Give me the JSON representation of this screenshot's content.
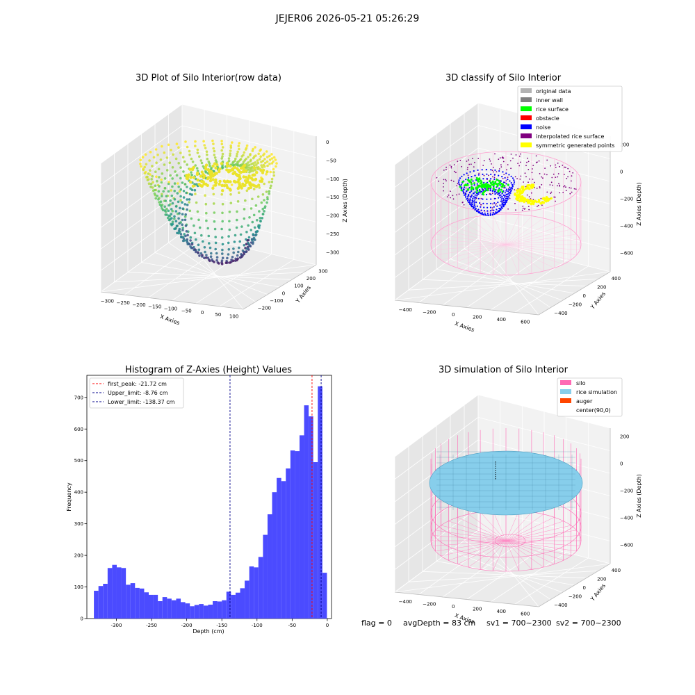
{
  "figure": {
    "suptitle": "JEJER06 2026-05-21 05:26:29",
    "footer": {
      "flag": "flag = 0",
      "avg_depth": "avgDepth = 83 cm",
      "sv1": "sv1 = 700~2300",
      "sv2": "sv2 = 700~2300"
    }
  },
  "chart_data": [
    {
      "type": "scatter",
      "title": "3D Plot of Silo Interior(row data)",
      "xlabel": "X Axies",
      "ylabel": "Y Axies",
      "zlabel": "Z Axies (Depth)",
      "x_ticks": [
        "−300",
        "−250",
        "−200",
        "−150",
        "−100",
        "−50",
        "0",
        "50",
        "100"
      ],
      "y_ticks": [
        "−200",
        "−100",
        "0",
        "100",
        "200",
        "300"
      ],
      "z_ticks": [
        "0",
        "−50",
        "−100",
        "−150",
        "−200",
        "−250",
        "−300"
      ],
      "colormap": "viridis"
    },
    {
      "type": "scatter",
      "title": "3D classify of Silo Interior",
      "xlabel": "X Axies",
      "ylabel": "Y Axies",
      "zlabel": "Z Axies (Depth)",
      "x_ticks": [
        "−400",
        "−200",
        "0",
        "200",
        "400",
        "600"
      ],
      "y_ticks": [
        "−400",
        "−200",
        "0",
        "200",
        "400"
      ],
      "z_ticks": [
        "200",
        "0",
        "−200",
        "−400",
        "−600"
      ],
      "legend": [
        {
          "label": "original data",
          "color": "#b3b3b3"
        },
        {
          "label": "inner wall",
          "color": "#808080"
        },
        {
          "label": "rice surface",
          "color": "#00ff00"
        },
        {
          "label": "obstacle",
          "color": "#ff0000"
        },
        {
          "label": "noise",
          "color": "#0000ff"
        },
        {
          "label": "interpolated rice surface",
          "color": "#800080"
        },
        {
          "label": "symmetric generated points",
          "color": "#ffff00"
        }
      ],
      "legend_position": "upper-right"
    },
    {
      "type": "bar",
      "title": "Histogram of Z-Axies (Height) Values",
      "xlabel": "Depth (cm)",
      "ylabel": "Frequency",
      "bar_color": "#4b4bff",
      "bin_start": -332,
      "bin_width": 6.5,
      "values": [
        88,
        103,
        110,
        160,
        170,
        162,
        160,
        107,
        112,
        97,
        95,
        83,
        75,
        75,
        55,
        68,
        63,
        58,
        63,
        52,
        48,
        39,
        43,
        46,
        41,
        44,
        55,
        54,
        58,
        85,
        75,
        82,
        96,
        120,
        165,
        162,
        195,
        265,
        330,
        400,
        445,
        435,
        475,
        532,
        530,
        580,
        675,
        640,
        495,
        735,
        145
      ],
      "xlim": [
        -342,
        6
      ],
      "ylim": [
        0,
        770
      ],
      "x_ticks": [
        -300,
        -250,
        -200,
        -150,
        -100,
        -50,
        0
      ],
      "y_ticks": [
        0,
        100,
        200,
        300,
        400,
        500,
        600,
        700
      ],
      "vlines": [
        {
          "label": "first_peak: -21.72 cm",
          "value": -21.72,
          "color": "#ff0000"
        },
        {
          "label": "Upper_limit: -8.76 cm",
          "value": -8.76,
          "color": "#00008b"
        },
        {
          "label": "Lower_limit: -138.37 cm",
          "value": -138.37,
          "color": "#00008b"
        }
      ],
      "legend_position": "upper-left"
    },
    {
      "type": "scatter",
      "title": "3D simulation of Silo Interior",
      "xlabel": "X Axies",
      "ylabel": "Y Axies",
      "zlabel": "Z Axies (Depth)",
      "x_ticks": [
        "−400",
        "−200",
        "0",
        "200",
        "400",
        "600"
      ],
      "y_ticks": [
        "−400",
        "−200",
        "0",
        "200",
        "400"
      ],
      "z_ticks": [
        "200",
        "0",
        "−200",
        "−400",
        "−600"
      ],
      "legend": [
        {
          "label": "silo",
          "color": "#ff69b4"
        },
        {
          "label": "rice simulation",
          "color": "#87ceeb"
        },
        {
          "label": "auger",
          "color": "#ff4500"
        },
        {
          "label": "center(90,0)",
          "color": "none"
        }
      ],
      "legend_position": "upper-right"
    }
  ]
}
